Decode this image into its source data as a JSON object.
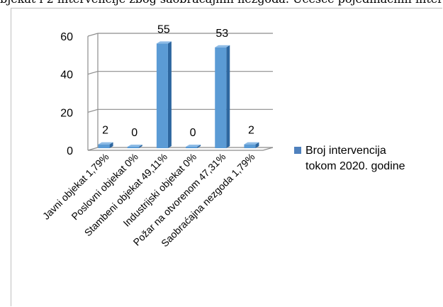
{
  "top_text": "bjekat i 2 intervencije zbog saobraćajnih nezgoda. Učešće pojedinačnih intervencija u ukupnom broju intervencija dato je grafičkim prikazom:",
  "chart_data": {
    "type": "bar",
    "title": "",
    "xlabel": "",
    "ylabel": "",
    "categories": [
      "Javni objekat 1,79%",
      "Poslovni objekat 0%",
      "Stambeni objekat 49,11%",
      "Industrijski objekat 0%",
      "Požar na otvorenom 47,31%",
      "Saobraćajna nezgoda 1,79%"
    ],
    "series": [
      {
        "name": "Broj intervencija tokom 2020. godine",
        "values": [
          2,
          0,
          55,
          0,
          53,
          2
        ]
      }
    ],
    "data_labels": [
      "2",
      "0",
      "55",
      "0",
      "53",
      "2"
    ],
    "y_ticks": [
      "0",
      "20",
      "40",
      "60"
    ],
    "ylim": [
      0,
      60
    ],
    "grid": true,
    "legend": {
      "position": "right",
      "line1": "Broj intervencija",
      "line2": "tokom 2020. godine"
    },
    "colors": {
      "bar_front": "#5b9bd5",
      "bar_side": "#2e67a0",
      "bar_top": "#8dbbe6",
      "grid": "#8c8c8c",
      "legend_swatch": "#4f81bd"
    }
  }
}
